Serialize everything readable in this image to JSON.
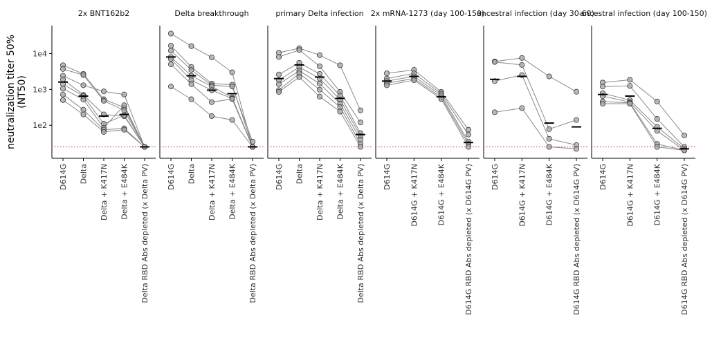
{
  "chart_data": {
    "type": "scatter",
    "ylabel": "neutralization titer 50% (NT50)",
    "ylabel_lines": [
      "neutralization titer 50%",
      "(NT50)"
    ],
    "yscale": "log",
    "ylim": [
      12,
      60000
    ],
    "yticks": [
      100,
      1000,
      10000
    ],
    "ytick_labels": [
      "1e2",
      "1e3",
      "1e4"
    ],
    "limit_of_detection": 25,
    "colors": {
      "points": "#a8a8a8",
      "point_edge": "#444444",
      "lines": "#888888",
      "median": "#000000",
      "lod": "#c0607a"
    },
    "facets": [
      {
        "title": "2x BNT162b2",
        "categories": [
          "D614G",
          "Delta",
          "Delta + K417N",
          "Delta + E484K",
          "Delta RBD Abs depleted (x Delta PV)"
        ],
        "medians": [
          1600,
          650,
          180,
          200,
          25
        ],
        "subjects": [
          [
            4700,
            2700,
            530,
            310,
            25
          ],
          [
            3700,
            2500,
            480,
            260,
            25
          ],
          [
            2400,
            1300,
            880,
            720,
            25
          ],
          [
            1900,
            700,
            200,
            180,
            25
          ],
          [
            1400,
            650,
            110,
            190,
            25
          ],
          [
            1050,
            520,
            85,
            360,
            25
          ],
          [
            720,
            270,
            75,
            82,
            25
          ],
          [
            500,
            200,
            65,
            75,
            25
          ]
        ]
      },
      {
        "title": "Delta breakthrough",
        "categories": [
          "D614G",
          "Delta",
          "Delta + K417N",
          "Delta + E484K",
          "Delta RBD Abs depleted (x Delta PV)"
        ],
        "medians": [
          8000,
          2400,
          950,
          760,
          25
        ],
        "subjects": [
          [
            36000,
            16000,
            7800,
            3000,
            25
          ],
          [
            16500,
            4200,
            1450,
            1350,
            25
          ],
          [
            12000,
            3500,
            1300,
            1200,
            35
          ],
          [
            8000,
            2400,
            1200,
            600,
            25
          ],
          [
            7000,
            1800,
            950,
            560,
            25
          ],
          [
            5000,
            1400,
            440,
            540,
            25
          ],
          [
            1200,
            530,
            180,
            140,
            25
          ]
        ]
      },
      {
        "title": "primary Delta infection",
        "categories": [
          "D614G",
          "Delta",
          "Delta + K417N",
          "Delta + E484K",
          "Delta RBD Abs depleted (x Delta PV)"
        ],
        "medians": [
          2000,
          4800,
          2200,
          560,
          55
        ],
        "subjects": [
          [
            10500,
            14000,
            9000,
            4700,
            260
          ],
          [
            8000,
            12500,
            4400,
            850,
            120
          ],
          [
            2600,
            5500,
            2700,
            670,
            60
          ],
          [
            1800,
            4200,
            2000,
            520,
            50
          ],
          [
            1400,
            3300,
            1450,
            400,
            40
          ],
          [
            950,
            2800,
            980,
            320,
            30
          ],
          [
            850,
            2200,
            630,
            240,
            25
          ]
        ]
      },
      {
        "title": "2x mRNA-1273 (day 100-150)",
        "categories": [
          "D614G",
          "D614G + K417N",
          "D614G + E484K",
          "D614G RBD Abs depleted (x D614G PV)"
        ],
        "medians": [
          1700,
          2300,
          620,
          33
        ],
        "subjects": [
          [
            2800,
            3500,
            850,
            75
          ],
          [
            2000,
            2800,
            760,
            55
          ],
          [
            1700,
            2300,
            680,
            35
          ],
          [
            1500,
            2000,
            600,
            30
          ],
          [
            1300,
            1800,
            540,
            25
          ]
        ]
      },
      {
        "title": "ancestral infection (day 30-60)",
        "categories": [
          "D614G",
          "D614G + K417N",
          "D614G + E484K",
          "D614G RBD Abs depleted (x D614G PV)"
        ],
        "medians": [
          1900,
          2300,
          115,
          90
        ],
        "subjects": [
          [
            6000,
            7500,
            2300,
            860
          ],
          [
            5800,
            4800,
            78,
            140
          ],
          [
            1700,
            2500,
            42,
            28
          ],
          [
            230,
            300,
            25,
            22
          ]
        ]
      },
      {
        "title": "ancestral infection (day 100-150)",
        "categories": [
          "D614G",
          "D614G + K417N",
          "D614G + E484K",
          "D614G RBD Abs depleted (x D614G PV)"
        ],
        "medians": [
          720,
          650,
          82,
          22
        ],
        "subjects": [
          [
            1550,
            1850,
            460,
            52
          ],
          [
            1200,
            1250,
            150,
            25
          ],
          [
            780,
            500,
            90,
            22
          ],
          [
            650,
            440,
            70,
            20
          ],
          [
            460,
            420,
            30,
            20
          ],
          [
            400,
            400,
            25,
            20
          ]
        ]
      }
    ]
  }
}
